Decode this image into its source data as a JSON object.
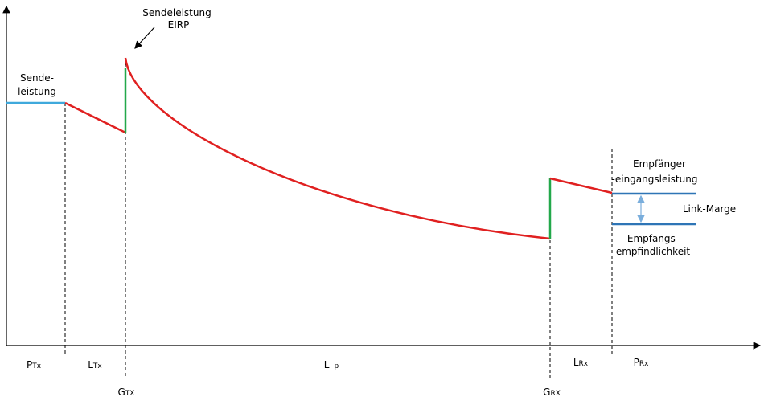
{
  "annotations": {
    "sendeleistung": {
      "lines": [
        "Sende-",
        "leistung"
      ]
    },
    "eirp": {
      "lines": [
        "Sendeleistung",
        "EIRP"
      ]
    },
    "empfaenger": {
      "lines": [
        "Empfänger",
        "-eingangsleistung"
      ]
    },
    "link_marge": {
      "lines": [
        "Link-Marge"
      ]
    },
    "empfindlichkeit": {
      "lines": [
        "Empfangs-",
        "empfindlichkeit"
      ]
    }
  },
  "axis_labels": [
    {
      "main": "P",
      "sub": "Tx"
    },
    {
      "main": "L",
      "sub": "Tx"
    },
    {
      "main": "L",
      "sub": "p"
    },
    {
      "main": "L",
      "sub": "Rx"
    },
    {
      "main": "P",
      "sub": "Rx"
    },
    {
      "main": "G",
      "sub": "TX"
    },
    {
      "main": "G",
      "sub": "RX"
    }
  ]
}
